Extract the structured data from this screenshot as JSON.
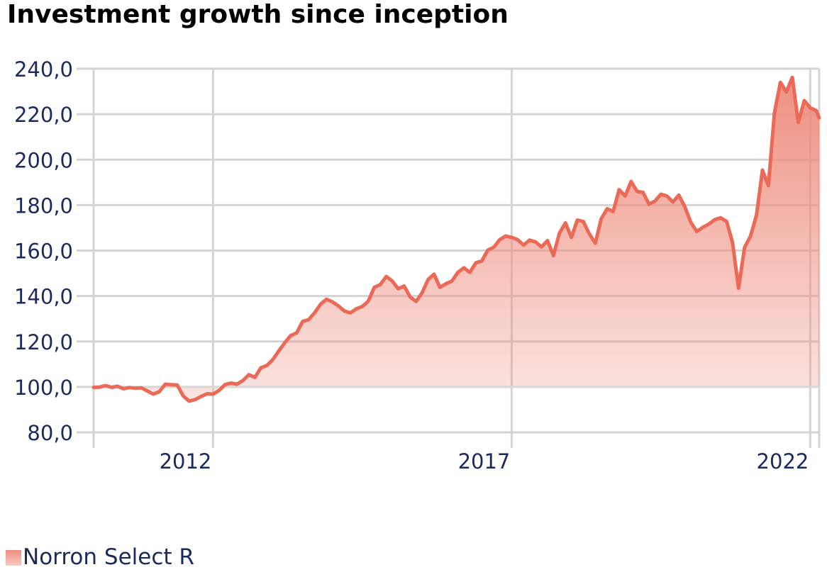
{
  "chart_data": {
    "type": "area",
    "title": "Investment growth since inception",
    "xlabel": "",
    "ylabel": "",
    "ylim": [
      80,
      240
    ],
    "yticks": [
      80,
      100,
      120,
      140,
      160,
      180,
      200,
      220,
      240
    ],
    "ytick_labels": [
      "80,0",
      "100,0",
      "120,0",
      "140,0",
      "160,0",
      "180,0",
      "200,0",
      "220,0",
      "240,0"
    ],
    "xlim": [
      2010.0,
      2022.15
    ],
    "xticks": [
      2012,
      2017,
      2022
    ],
    "xtick_labels": [
      "2012",
      "2017",
      "2022"
    ],
    "grid": true,
    "baseline": 100,
    "series": [
      {
        "name": "Norron Select R",
        "color": "#ea6a57",
        "x": [
          2010.0,
          2010.1,
          2010.2,
          2010.3,
          2010.4,
          2010.5,
          2010.6,
          2010.7,
          2010.8,
          2010.9,
          2011.0,
          2011.1,
          2011.2,
          2011.3,
          2011.4,
          2011.5,
          2011.6,
          2011.7,
          2011.8,
          2011.9,
          2012.0,
          2012.1,
          2012.2,
          2012.3,
          2012.4,
          2012.5,
          2012.6,
          2012.7,
          2012.8,
          2012.9,
          2013.0,
          2013.1,
          2013.2,
          2013.3,
          2013.4,
          2013.5,
          2013.6,
          2013.7,
          2013.8,
          2013.9,
          2014.0,
          2014.1,
          2014.2,
          2014.3,
          2014.4,
          2014.5,
          2014.6,
          2014.7,
          2014.8,
          2014.9,
          2015.0,
          2015.1,
          2015.2,
          2015.3,
          2015.4,
          2015.5,
          2015.6,
          2015.7,
          2015.8,
          2015.9,
          2016.0,
          2016.1,
          2016.2,
          2016.3,
          2016.4,
          2016.5,
          2016.6,
          2016.7,
          2016.8,
          2016.9,
          2017.0,
          2017.1,
          2017.2,
          2017.3,
          2017.4,
          2017.5,
          2017.6,
          2017.7,
          2017.8,
          2017.9,
          2018.0,
          2018.1,
          2018.2,
          2018.3,
          2018.4,
          2018.5,
          2018.6,
          2018.7,
          2018.8,
          2018.9,
          2019.0,
          2019.1,
          2019.2,
          2019.3,
          2019.4,
          2019.5,
          2019.6,
          2019.7,
          2019.8,
          2019.9,
          2020.0,
          2020.1,
          2020.2,
          2020.3,
          2020.4,
          2020.5,
          2020.6,
          2020.7,
          2020.8,
          2020.9,
          2021.0,
          2021.1,
          2021.2,
          2021.3,
          2021.4,
          2021.5,
          2021.6,
          2021.7,
          2021.8,
          2021.9,
          2022.0,
          2022.1,
          2022.15
        ],
        "values": [
          99.8,
          99.9,
          100.6,
          99.8,
          100.3,
          99.2,
          99.7,
          99.4,
          99.6,
          98.2,
          96.8,
          97.9,
          101.2,
          101.0,
          100.8,
          96.0,
          93.8,
          94.4,
          95.8,
          97.0,
          96.8,
          98.4,
          101.0,
          101.7,
          101.2,
          102.8,
          105.4,
          104.2,
          108.4,
          109.4,
          112.0,
          115.8,
          119.4,
          122.6,
          123.8,
          128.8,
          129.6,
          132.6,
          136.4,
          138.6,
          137.4,
          135.6,
          133.4,
          132.6,
          134.4,
          135.4,
          137.8,
          143.8,
          145.0,
          148.6,
          146.6,
          143.2,
          144.4,
          139.6,
          137.6,
          141.4,
          147.2,
          149.6,
          143.8,
          145.4,
          146.6,
          150.4,
          152.4,
          150.4,
          154.6,
          155.4,
          160.2,
          161.4,
          164.8,
          166.4,
          165.8,
          164.8,
          162.4,
          164.6,
          163.8,
          161.6,
          164.4,
          157.8,
          167.6,
          172.2,
          165.8,
          173.4,
          172.8,
          167.4,
          163.2,
          174.0,
          178.4,
          177.2,
          186.8,
          184.0,
          190.4,
          186.0,
          185.6,
          180.4,
          181.8,
          184.8,
          184.0,
          181.4,
          184.4,
          179.2,
          172.4,
          168.4,
          170.2,
          171.6,
          173.6,
          174.4,
          172.8,
          163.4,
          143.4,
          161.4,
          166.4,
          175.6,
          195.4,
          188.6,
          220.6,
          234.0,
          229.8,
          236.2,
          216.4,
          226.0,
          222.8,
          221.6,
          218.4
        ]
      }
    ],
    "legend": {
      "position": "bottom-left",
      "label": "Norron Select R"
    }
  }
}
